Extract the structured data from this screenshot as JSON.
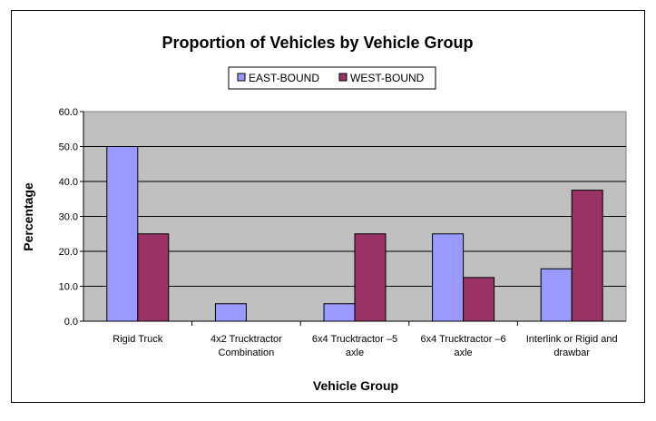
{
  "chart_data": {
    "type": "bar",
    "title": "Proportion of Vehicles by Vehicle Group",
    "xlabel": "Vehicle Group",
    "ylabel": "Percentage",
    "categories": [
      [
        "Rigid Truck"
      ],
      [
        "4x2 Trucktractor",
        "Combination"
      ],
      [
        "6x4 Trucktractor –5",
        "axle"
      ],
      [
        "6x4 Trucktractor –6",
        "axle"
      ],
      [
        "Interlink or Rigid and",
        "drawbar"
      ]
    ],
    "series": [
      {
        "name": "EAST-BOUND",
        "color": "#9999ff",
        "values": [
          50.0,
          5.0,
          5.0,
          25.0,
          15.0
        ]
      },
      {
        "name": "WEST-BOUND",
        "color": "#993366",
        "values": [
          25.0,
          0.0,
          25.0,
          12.5,
          37.5
        ]
      }
    ],
    "ylim": [
      0,
      60
    ],
    "yticks": [
      "0.0",
      "10.0",
      "20.0",
      "30.0",
      "40.0",
      "50.0",
      "60.0"
    ],
    "grid": true,
    "plot_background": "#c0c0c0",
    "legend_position": "top"
  }
}
